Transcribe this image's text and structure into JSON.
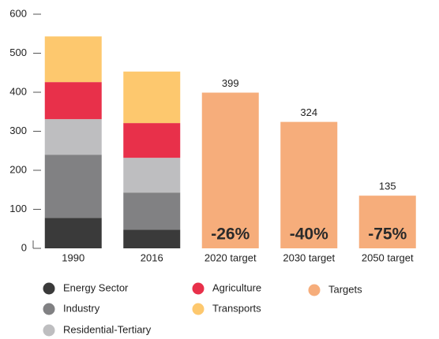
{
  "chart_data": {
    "type": "stacked_bar",
    "categories": [
      "1990",
      "2016",
      "2020 target",
      "2030 target",
      "2050 target"
    ],
    "series": [
      {
        "name": "Energy Sector",
        "color": "#3a3a3a",
        "values": [
          78,
          48,
          null,
          null,
          null
        ]
      },
      {
        "name": "Industry",
        "color": "#818183",
        "values": [
          162,
          95,
          null,
          null,
          null
        ]
      },
      {
        "name": "Residential-Tertiary",
        "color": "#bebec0",
        "values": [
          91,
          89,
          null,
          null,
          null
        ]
      },
      {
        "name": "Agriculture",
        "color": "#e8304a",
        "values": [
          95,
          89,
          null,
          null,
          null
        ]
      },
      {
        "name": "Transports",
        "color": "#fdc86e",
        "values": [
          117,
          132,
          null,
          null,
          null
        ]
      },
      {
        "name": "Targets",
        "color": "#f6ad7b",
        "values": [
          null,
          null,
          399,
          324,
          135
        ],
        "value_labels": [
          null,
          null,
          "399",
          "324",
          "135"
        ]
      }
    ],
    "annotations": [
      null,
      null,
      "-26%",
      "-40%",
      "-75%"
    ],
    "ylim": [
      0,
      600
    ],
    "yticks": [
      0,
      100,
      200,
      300,
      400,
      500,
      600
    ]
  }
}
